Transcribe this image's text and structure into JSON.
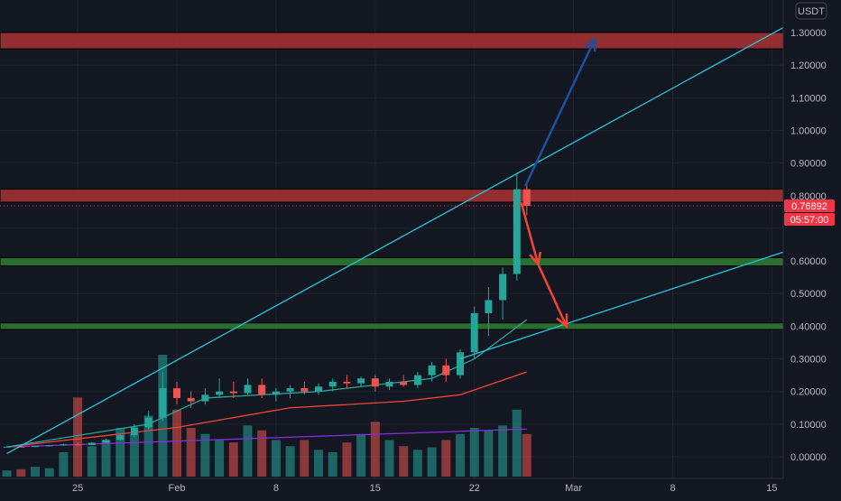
{
  "chart_data": {
    "type": "candlestick",
    "title": "",
    "currency": "USDT",
    "y_ticks": [
      "1.30000",
      "1.20000",
      "1.10000",
      "1.00000",
      "0.90000",
      "0.80000",
      "0.70000",
      "0.60000",
      "0.50000",
      "0.40000",
      "0.30000",
      "0.20000",
      "0.10000",
      "0.00000"
    ],
    "ylim": [
      -0.03,
      1.37
    ],
    "x_ticks": [
      {
        "label": "25",
        "day": -7
      },
      {
        "label": "Feb",
        "day": 0
      },
      {
        "label": "8",
        "day": 7
      },
      {
        "label": "15",
        "day": 14
      },
      {
        "label": "22",
        "day": 21
      },
      {
        "label": "Mar",
        "day": 28
      },
      {
        "label": "8",
        "day": 35
      },
      {
        "label": "15",
        "day": 42
      }
    ],
    "last_price": "0.76892",
    "countdown": "05:57:00",
    "zones": [
      {
        "type": "resistance",
        "from": 1.25,
        "to": 1.3,
        "color": "#a83232"
      },
      {
        "type": "resistance",
        "from": 0.78,
        "to": 0.82,
        "color": "#a83232"
      },
      {
        "type": "support",
        "from": 0.585,
        "to": 0.61,
        "color": "#2e7d32"
      },
      {
        "type": "support",
        "from": 0.39,
        "to": 0.41,
        "color": "#2e7d32"
      }
    ],
    "trendlines": [
      {
        "from": [
          -12,
          0.01
        ],
        "to": [
          43,
          1.32
        ],
        "color": "#26c6da"
      },
      {
        "from": [
          20,
          0.3
        ],
        "to": [
          43,
          0.63
        ],
        "color": "#26c6da"
      }
    ],
    "arrows": [
      {
        "from": [
          24.6,
          0.83
        ],
        "to": [
          29.5,
          1.28
        ],
        "color": "#1e50a0"
      },
      {
        "from": [
          24.3,
          0.78
        ],
        "to": [
          25.5,
          0.59
        ],
        "color": "#f44336"
      },
      {
        "from": [
          25.5,
          0.59
        ],
        "to": [
          27.5,
          0.4
        ],
        "color": "#f44336"
      }
    ],
    "ohlc": [
      [
        -12,
        0.03,
        0.032,
        0.028,
        0.031
      ],
      [
        -11,
        0.031,
        0.033,
        0.029,
        0.03
      ],
      [
        -10,
        0.03,
        0.034,
        0.029,
        0.033
      ],
      [
        -9,
        0.033,
        0.036,
        0.031,
        0.035
      ],
      [
        -8,
        0.035,
        0.04,
        0.033,
        0.038
      ],
      [
        -7,
        0.038,
        0.042,
        0.034,
        0.036
      ],
      [
        -6,
        0.036,
        0.045,
        0.035,
        0.043
      ],
      [
        -5,
        0.043,
        0.055,
        0.041,
        0.052
      ],
      [
        -4,
        0.052,
        0.07,
        0.05,
        0.066
      ],
      [
        -3,
        0.066,
        0.1,
        0.06,
        0.09
      ],
      [
        -2,
        0.09,
        0.14,
        0.085,
        0.12
      ],
      [
        -1,
        0.12,
        0.26,
        0.11,
        0.21
      ],
      [
        0,
        0.21,
        0.23,
        0.16,
        0.18
      ],
      [
        1,
        0.18,
        0.2,
        0.15,
        0.17
      ],
      [
        2,
        0.17,
        0.21,
        0.16,
        0.19
      ],
      [
        3,
        0.19,
        0.24,
        0.18,
        0.2
      ],
      [
        4,
        0.2,
        0.23,
        0.18,
        0.195
      ],
      [
        5,
        0.195,
        0.24,
        0.19,
        0.22
      ],
      [
        6,
        0.22,
        0.24,
        0.18,
        0.19
      ],
      [
        7,
        0.19,
        0.21,
        0.17,
        0.2
      ],
      [
        8,
        0.2,
        0.22,
        0.18,
        0.21
      ],
      [
        9,
        0.21,
        0.23,
        0.19,
        0.2
      ],
      [
        10,
        0.2,
        0.225,
        0.19,
        0.215
      ],
      [
        11,
        0.215,
        0.24,
        0.2,
        0.23
      ],
      [
        12,
        0.23,
        0.25,
        0.21,
        0.225
      ],
      [
        13,
        0.225,
        0.245,
        0.215,
        0.24
      ],
      [
        14,
        0.24,
        0.25,
        0.2,
        0.215
      ],
      [
        15,
        0.215,
        0.24,
        0.205,
        0.23
      ],
      [
        16,
        0.23,
        0.25,
        0.215,
        0.22
      ],
      [
        17,
        0.22,
        0.26,
        0.21,
        0.25
      ],
      [
        18,
        0.25,
        0.29,
        0.23,
        0.28
      ],
      [
        19,
        0.28,
        0.3,
        0.23,
        0.25
      ],
      [
        20,
        0.25,
        0.33,
        0.24,
        0.32
      ],
      [
        21,
        0.32,
        0.46,
        0.3,
        0.44
      ],
      [
        22,
        0.44,
        0.52,
        0.37,
        0.48
      ],
      [
        23,
        0.48,
        0.58,
        0.42,
        0.56
      ],
      [
        24,
        0.56,
        0.87,
        0.54,
        0.82
      ],
      [
        24.7,
        0.82,
        0.84,
        0.74,
        0.769
      ]
    ],
    "volume_scale_max": 1.0,
    "volume": [
      0.05,
      0.06,
      0.08,
      0.07,
      0.2,
      0.65,
      0.25,
      0.3,
      0.4,
      0.35,
      0.5,
      1.0,
      0.55,
      0.4,
      0.35,
      0.3,
      0.28,
      0.42,
      0.38,
      0.3,
      0.25,
      0.3,
      0.22,
      0.2,
      0.28,
      0.35,
      0.45,
      0.3,
      0.25,
      0.22,
      0.24,
      0.3,
      0.35,
      0.4,
      0.38,
      0.42,
      0.55,
      0.35
    ],
    "overlays": [
      {
        "name": "",
        "color": "#8a2be2",
        "values": [
          [
            -12,
            0.03
          ],
          [
            24.7,
            0.085
          ]
        ]
      },
      {
        "name": "",
        "color": "#f44336",
        "values": [
          [
            -12,
            0.03
          ],
          [
            0,
            0.09
          ],
          [
            8,
            0.15
          ],
          [
            16,
            0.17
          ],
          [
            20,
            0.19
          ],
          [
            24.7,
            0.26
          ]
        ]
      },
      {
        "name": "",
        "color": "#26a69a",
        "values": [
          [
            -12,
            0.03
          ],
          [
            -2,
            0.1
          ],
          [
            2,
            0.18
          ],
          [
            10,
            0.2
          ],
          [
            18,
            0.24
          ],
          [
            21,
            0.3
          ],
          [
            24.7,
            0.42
          ]
        ]
      }
    ]
  }
}
